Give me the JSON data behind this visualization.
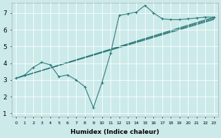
{
  "xlabel": "Humidex (Indice chaleur)",
  "background_color": "#cceaea",
  "grid_color": "#ffffff",
  "line_color": "#2d7a7a",
  "xlim": [
    -0.5,
    23.5
  ],
  "ylim": [
    0.8,
    7.6
  ],
  "xticks": [
    0,
    1,
    2,
    3,
    4,
    5,
    6,
    7,
    8,
    9,
    10,
    11,
    12,
    13,
    14,
    15,
    16,
    17,
    18,
    19,
    20,
    21,
    22,
    23
  ],
  "yticks": [
    1,
    2,
    3,
    4,
    5,
    6,
    7
  ],
  "zigzag": {
    "x": [
      0,
      1,
      2,
      3,
      4,
      5,
      6,
      7,
      8,
      9,
      10,
      11,
      12,
      13,
      14,
      15,
      16,
      17,
      18,
      19,
      20,
      21,
      22,
      23
    ],
    "y": [
      3.1,
      3.3,
      3.75,
      4.05,
      3.9,
      3.2,
      3.3,
      3.0,
      2.6,
      1.35,
      2.85,
      4.6,
      6.85,
      6.95,
      7.05,
      7.45,
      7.0,
      6.65,
      6.6,
      6.6,
      6.65,
      6.7,
      6.75,
      6.75
    ]
  },
  "trend_lines": [
    {
      "x": [
        0,
        23
      ],
      "y": [
        3.1,
        6.6
      ]
    },
    {
      "x": [
        0,
        23
      ],
      "y": [
        3.1,
        6.65
      ]
    },
    {
      "x": [
        0,
        23
      ],
      "y": [
        3.1,
        6.7
      ]
    },
    {
      "x": [
        0,
        23
      ],
      "y": [
        3.1,
        6.75
      ]
    }
  ]
}
